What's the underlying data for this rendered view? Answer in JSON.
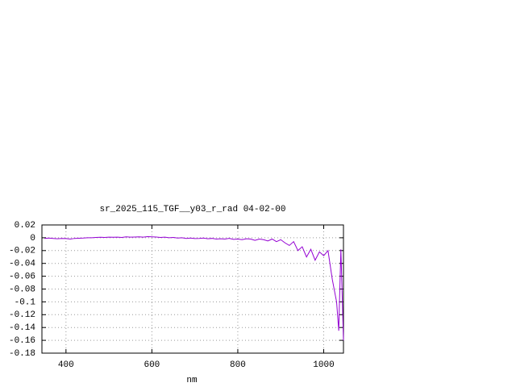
{
  "chart_data": {
    "type": "line",
    "title": "sr_2025_115_TGF__y03_r_rad 04-02-00",
    "xlabel": "nm",
    "x": [
      350,
      360,
      370,
      380,
      390,
      400,
      410,
      420,
      430,
      440,
      450,
      460,
      470,
      480,
      490,
      500,
      510,
      520,
      530,
      540,
      550,
      560,
      570,
      580,
      590,
      600,
      610,
      620,
      630,
      640,
      650,
      660,
      670,
      680,
      690,
      700,
      710,
      720,
      730,
      740,
      750,
      760,
      770,
      780,
      790,
      800,
      810,
      820,
      830,
      840,
      850,
      860,
      870,
      880,
      890,
      900,
      910,
      920,
      930,
      940,
      950,
      960,
      970,
      980,
      990,
      1000,
      1010,
      1020,
      1030,
      1035,
      1040,
      1046
    ],
    "series": [
      {
        "color": "#9400d3",
        "values": [
          -0.001,
          -0.0005,
          -0.001,
          -0.0015,
          -0.001,
          -0.0012,
          -0.002,
          -0.001,
          -0.0008,
          -0.0005,
          0,
          0,
          0.0005,
          0.0008,
          0.0005,
          0.001,
          0.0008,
          0.001,
          0.0005,
          0.0015,
          0.001,
          0.0012,
          0.0015,
          0.001,
          0.0018,
          0.0015,
          0.0012,
          0.0005,
          0.001,
          0,
          0.0005,
          -0.0005,
          0,
          -0.001,
          -0.0005,
          -0.0012,
          -0.001,
          -0.0005,
          -0.0015,
          -0.001,
          -0.002,
          -0.0015,
          -0.002,
          -0.001,
          -0.0025,
          -0.002,
          -0.003,
          -0.0015,
          -0.002,
          -0.004,
          -0.002,
          -0.003,
          -0.005,
          -0.002,
          -0.006,
          -0.003,
          -0.008,
          -0.012,
          -0.006,
          -0.02,
          -0.014,
          -0.03,
          -0.018,
          -0.035,
          -0.022,
          -0.028,
          -0.02,
          -0.065,
          -0.1,
          -0.145,
          -0.018,
          -0.16
        ]
      }
    ],
    "xlim": [
      344,
      1046
    ],
    "xticks": [
      400,
      600,
      800,
      1000
    ],
    "ylim": [
      -0.18,
      0.02
    ],
    "yticks": [
      0.02,
      0,
      -0.02,
      -0.04,
      -0.06,
      -0.08,
      -0.1,
      -0.12,
      -0.14,
      -0.16,
      -0.18
    ],
    "grid": true
  }
}
